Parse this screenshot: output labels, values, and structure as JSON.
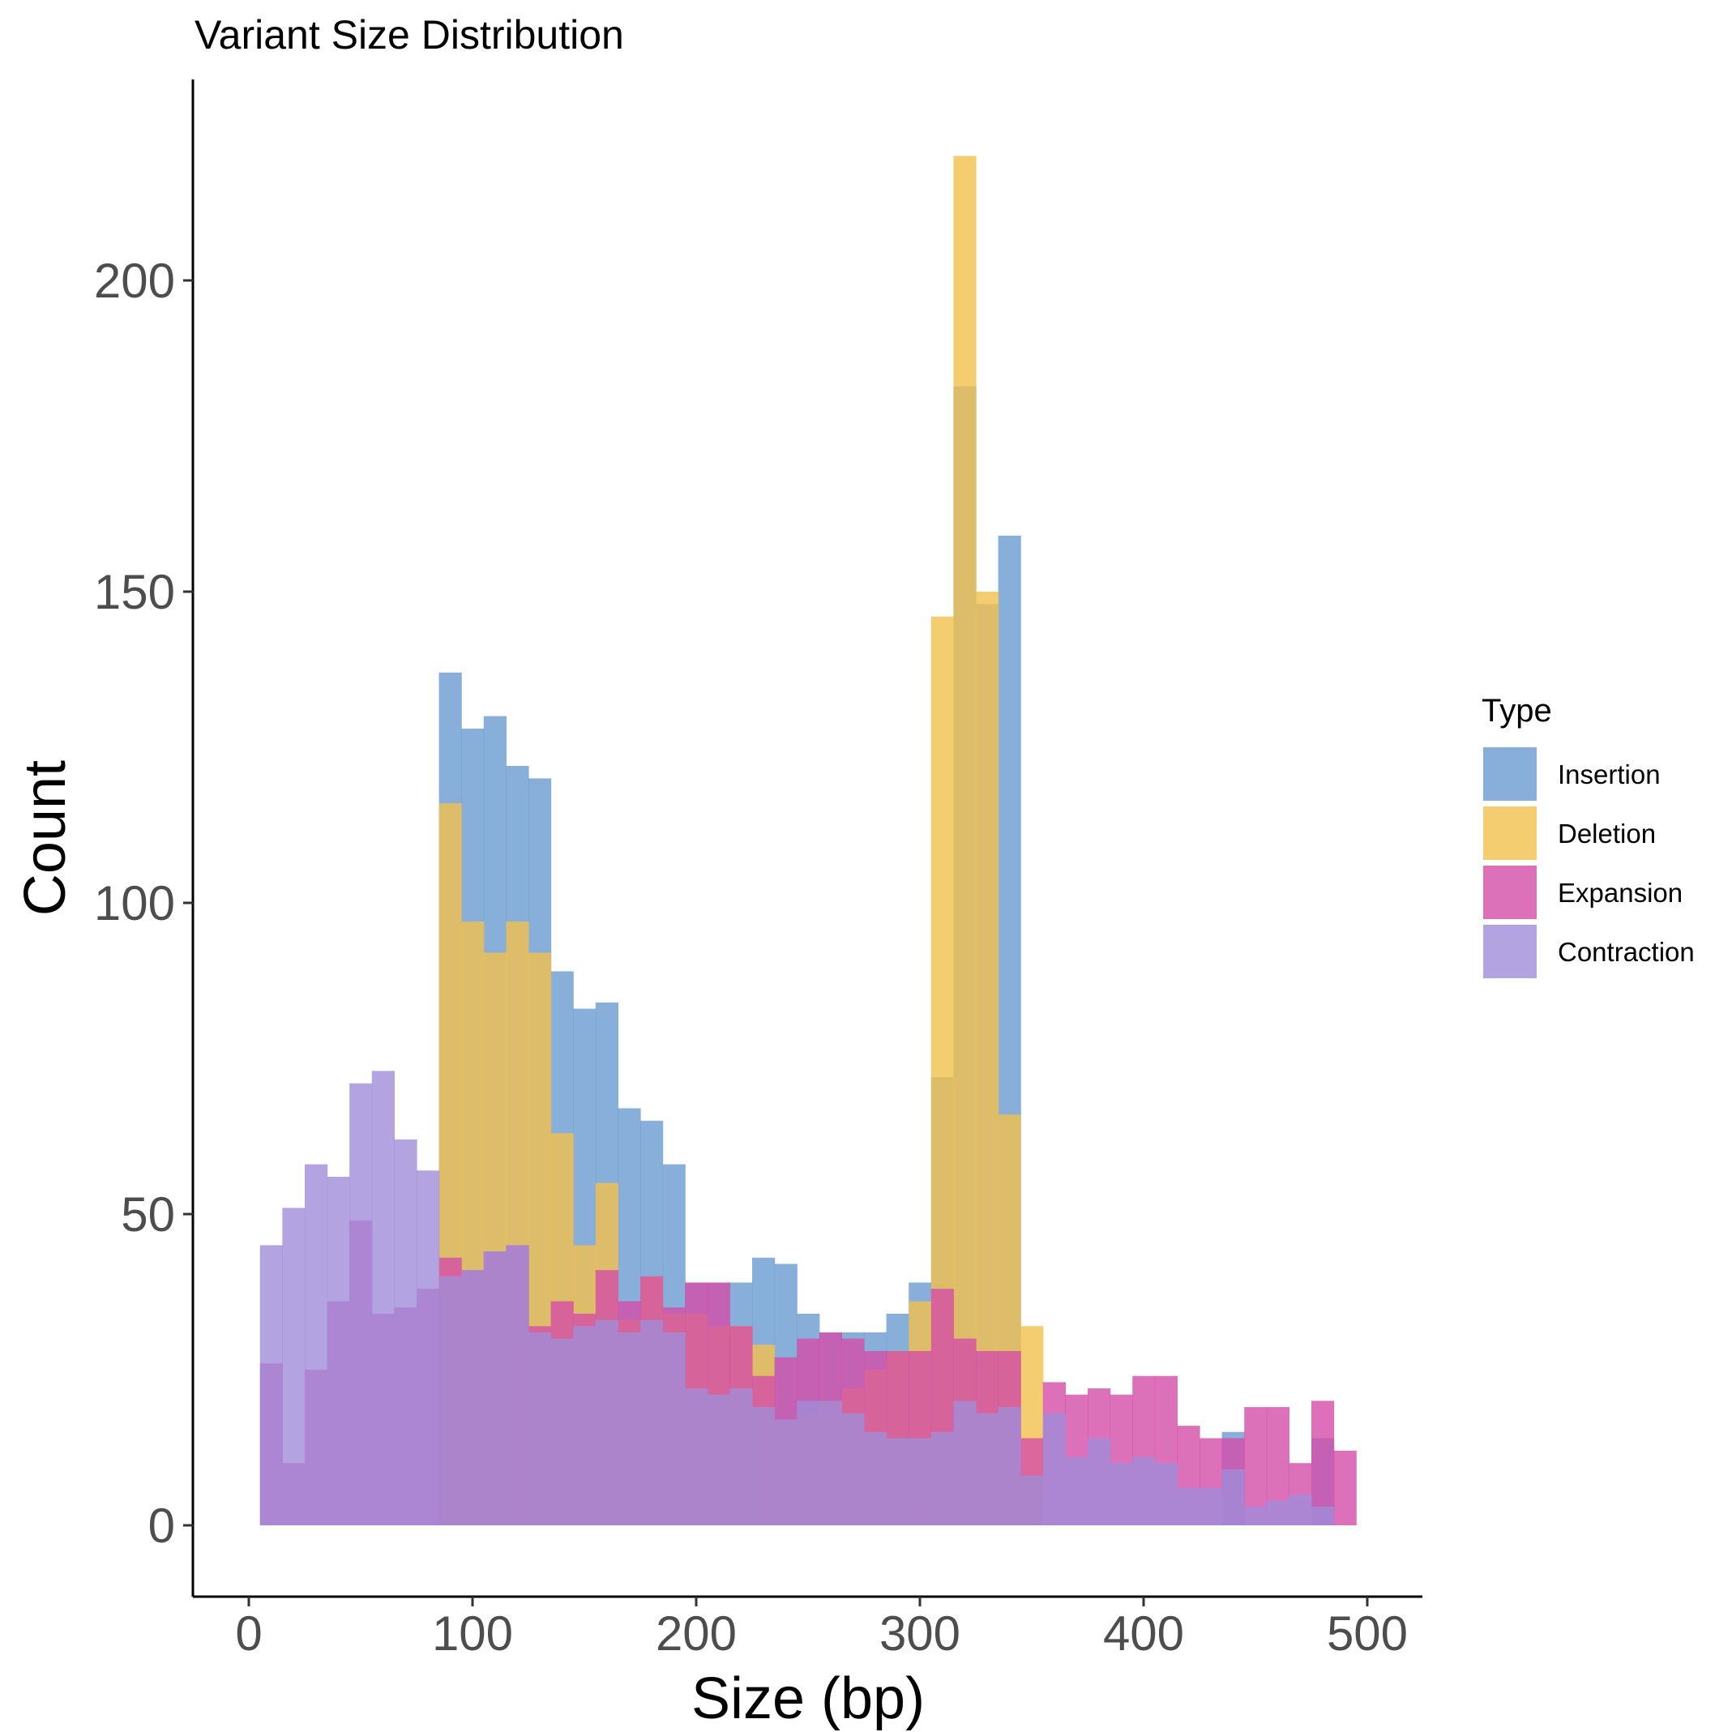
{
  "chart_data": {
    "type": "histogram",
    "title": "Variant Size Distribution",
    "xlabel": "Size (bp)",
    "ylabel": "Count",
    "xlim": [
      -25,
      525
    ],
    "ylim": [
      -11,
      230
    ],
    "x_ticks": [
      0,
      100,
      200,
      300,
      400,
      500
    ],
    "y_ticks": [
      0,
      50,
      100,
      150,
      200
    ],
    "grid": false,
    "legend": {
      "title": "Type",
      "position": "right"
    },
    "bin_width": 10,
    "bin_starts": [
      5,
      15,
      25,
      35,
      45,
      55,
      65,
      75,
      85,
      95,
      105,
      115,
      125,
      135,
      145,
      155,
      165,
      175,
      185,
      195,
      205,
      215,
      225,
      235,
      245,
      255,
      265,
      275,
      285,
      295,
      305,
      315,
      325,
      335,
      345,
      355,
      365,
      375,
      385,
      395,
      405,
      415,
      425,
      435,
      445,
      455,
      465,
      475,
      485
    ],
    "series": [
      {
        "name": "Insertion",
        "color": "#6A9BD1",
        "values": [
          0,
          0,
          0,
          0,
          0,
          0,
          0,
          0,
          137,
          128,
          130,
          122,
          120,
          89,
          83,
          84,
          67,
          65,
          58,
          39,
          39,
          39,
          43,
          42,
          34,
          31,
          31,
          31,
          34,
          39,
          72,
          183,
          148,
          159,
          0,
          0,
          0,
          0,
          0,
          0,
          0,
          0,
          0,
          15,
          0,
          0,
          0,
          14,
          0
        ]
      },
      {
        "name": "Deletion",
        "color": "#F2C04D",
        "values": [
          0,
          0,
          0,
          0,
          0,
          0,
          0,
          0,
          116,
          97,
          92,
          97,
          92,
          63,
          45,
          55,
          33,
          40,
          34,
          34,
          32,
          32,
          29,
          17,
          18,
          20,
          22,
          25,
          28,
          36,
          146,
          220,
          150,
          66,
          32,
          0,
          0,
          0,
          0,
          0,
          0,
          0,
          0,
          0,
          0,
          0,
          0,
          0,
          0
        ]
      },
      {
        "name": "Expansion",
        "color": "#D44DA8",
        "values": [
          26,
          10,
          25,
          36,
          49,
          34,
          35,
          38,
          43,
          41,
          44,
          45,
          32,
          36,
          34,
          41,
          36,
          40,
          35,
          39,
          39,
          32,
          24,
          27,
          30,
          31,
          30,
          28,
          28,
          28,
          38,
          30,
          28,
          28,
          14,
          23,
          21,
          22,
          21,
          24,
          24,
          16,
          14,
          14,
          19,
          19,
          10,
          20,
          12
        ]
      },
      {
        "name": "Contraction",
        "color": "#A08CD8",
        "values": [
          45,
          51,
          58,
          56,
          71,
          73,
          62,
          57,
          40,
          41,
          44,
          45,
          31,
          30,
          32,
          33,
          31,
          33,
          31,
          22,
          21,
          22,
          19,
          17,
          20,
          20,
          18,
          15,
          14,
          14,
          15,
          20,
          18,
          19,
          8,
          18,
          11,
          14,
          10,
          11,
          10,
          6,
          6,
          9,
          3,
          4,
          5,
          3,
          0
        ]
      }
    ]
  }
}
